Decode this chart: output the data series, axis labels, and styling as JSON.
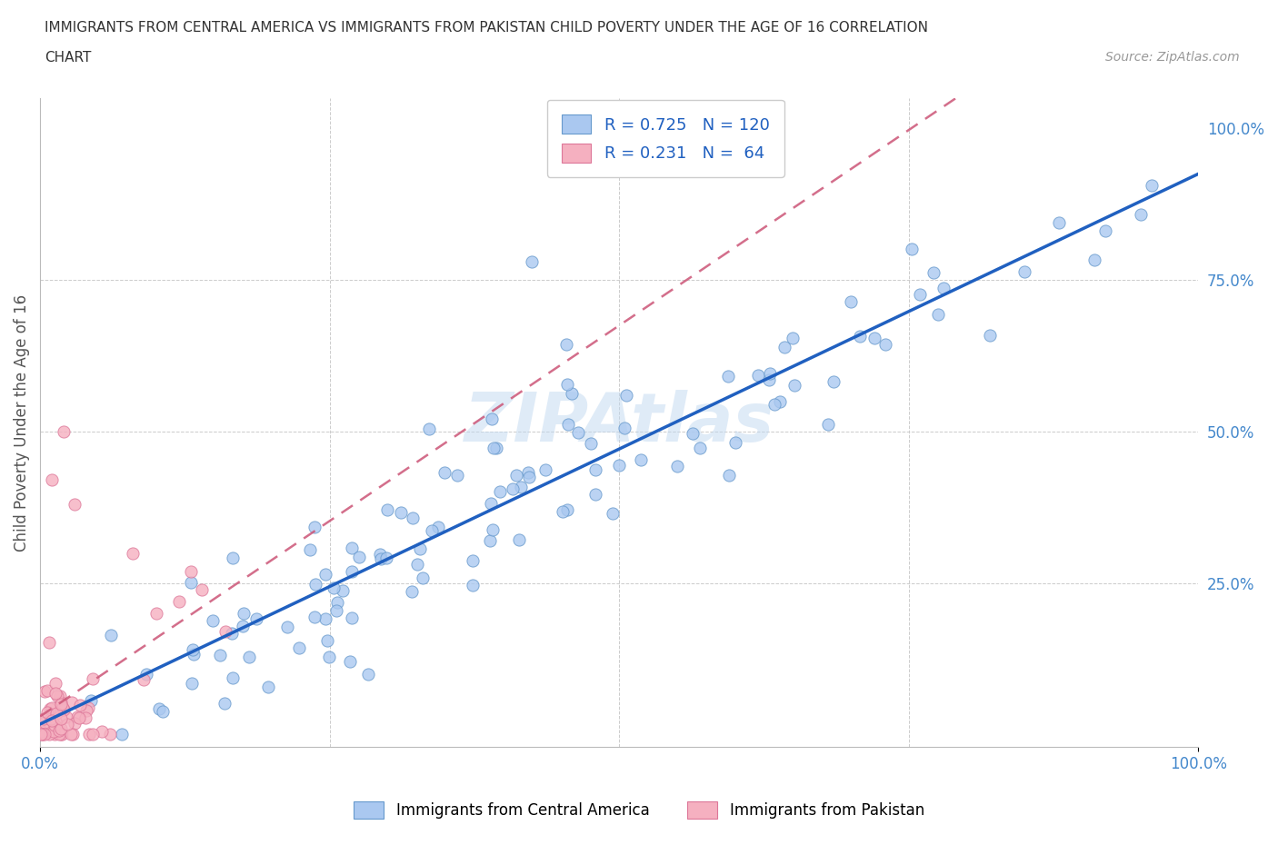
{
  "title_line1": "IMMIGRANTS FROM CENTRAL AMERICA VS IMMIGRANTS FROM PAKISTAN CHILD POVERTY UNDER THE AGE OF 16 CORRELATION",
  "title_line2": "CHART",
  "source_text": "Source: ZipAtlas.com",
  "ylabel": "Child Poverty Under the Age of 16",
  "xlim": [
    0,
    1
  ],
  "ylim": [
    -0.02,
    1.05
  ],
  "xticks_show": [
    0.0,
    1.0
  ],
  "xticklabels_show": [
    "0.0%",
    "100.0%"
  ],
  "yticks_right": [
    0.25,
    0.5,
    0.75,
    1.0
  ],
  "yticklabels_right": [
    "25.0%",
    "50.0%",
    "75.0%",
    "100.0%"
  ],
  "series1_color": "#aac8f0",
  "series1_edge": "#6699cc",
  "series2_color": "#f5b0c0",
  "series2_edge": "#dd7799",
  "trendline1_color": "#2060c0",
  "trendline2_color": "#cc5577",
  "R1": 0.725,
  "N1": 120,
  "R2": 0.231,
  "N2": 64,
  "watermark": "ZIPAtlas",
  "legend_label1": "Immigrants from Central America",
  "legend_label2": "Immigrants from Pakistan",
  "background_color": "#ffffff",
  "grid_color": "#cccccc",
  "title_color": "#333333",
  "axis_label_color": "#555555",
  "tick_color": "#4488cc",
  "marker_size": 90
}
